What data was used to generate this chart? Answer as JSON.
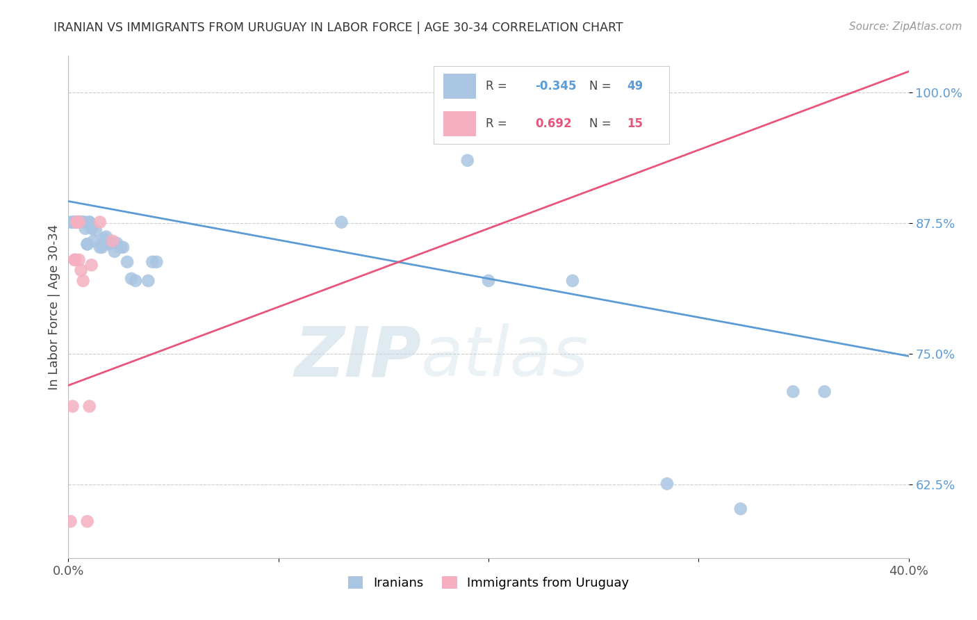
{
  "title": "IRANIAN VS IMMIGRANTS FROM URUGUAY IN LABOR FORCE | AGE 30-34 CORRELATION CHART",
  "source": "Source: ZipAtlas.com",
  "ylabel": "In Labor Force | Age 30-34",
  "xlim": [
    0.0,
    0.4
  ],
  "ylim": [
    0.555,
    1.035
  ],
  "yticks": [
    0.625,
    0.75,
    0.875,
    1.0
  ],
  "ytick_labels": [
    "62.5%",
    "75.0%",
    "87.5%",
    "100.0%"
  ],
  "xticks": [
    0.0,
    0.1,
    0.2,
    0.3,
    0.4
  ],
  "xtick_labels": [
    "0.0%",
    "",
    "",
    "",
    "40.0%"
  ],
  "blue_R": "-0.345",
  "blue_N": "49",
  "pink_R": "0.692",
  "pink_N": "15",
  "blue_color": "#aac5e2",
  "pink_color": "#f5afc0",
  "blue_line_color": "#5b9bd5",
  "pink_line_color": "#e8547a",
  "watermark_color": "#dceef8",
  "blue_x": [
    0.001,
    0.002,
    0.002,
    0.003,
    0.003,
    0.003,
    0.004,
    0.004,
    0.005,
    0.005,
    0.005,
    0.006,
    0.006,
    0.006,
    0.007,
    0.007,
    0.008,
    0.008,
    0.009,
    0.009,
    0.01,
    0.01,
    0.011,
    0.012,
    0.013,
    0.015,
    0.016,
    0.017,
    0.018,
    0.019,
    0.02,
    0.022,
    0.023,
    0.025,
    0.026,
    0.028,
    0.03,
    0.032,
    0.038,
    0.04,
    0.042,
    0.13,
    0.19,
    0.2,
    0.24,
    0.285,
    0.32,
    0.345,
    0.36
  ],
  "blue_y": [
    0.876,
    0.876,
    0.876,
    0.876,
    0.876,
    0.876,
    0.876,
    0.876,
    0.876,
    0.876,
    0.876,
    0.876,
    0.876,
    0.876,
    0.876,
    0.876,
    0.876,
    0.87,
    0.855,
    0.855,
    0.876,
    0.876,
    0.87,
    0.858,
    0.868,
    0.852,
    0.852,
    0.86,
    0.862,
    0.855,
    0.856,
    0.848,
    0.856,
    0.852,
    0.852,
    0.838,
    0.822,
    0.82,
    0.82,
    0.838,
    0.838,
    0.876,
    0.935,
    0.82,
    0.82,
    0.626,
    0.602,
    0.714,
    0.714
  ],
  "pink_x": [
    0.001,
    0.002,
    0.003,
    0.003,
    0.004,
    0.004,
    0.005,
    0.005,
    0.006,
    0.007,
    0.009,
    0.01,
    0.011,
    0.015,
    0.021
  ],
  "pink_y": [
    0.59,
    0.7,
    0.84,
    0.84,
    0.876,
    0.876,
    0.876,
    0.84,
    0.83,
    0.82,
    0.59,
    0.7,
    0.835,
    0.876,
    0.858
  ],
  "blue_trend_x": [
    0.0,
    0.4
  ],
  "blue_trend_y": [
    0.896,
    0.748
  ],
  "pink_trend_x": [
    0.0,
    0.4
  ],
  "pink_trend_y": [
    0.72,
    1.02
  ]
}
